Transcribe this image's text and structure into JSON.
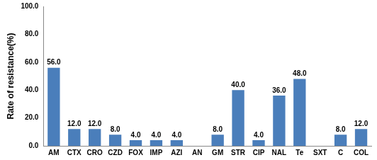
{
  "chart_data": {
    "type": "bar",
    "y_label": "Rate of resistance(%)",
    "categories": [
      "AM",
      "CTX",
      "CRO",
      "CZD",
      "FOX",
      "IMP",
      "AZI",
      "AN",
      "GM",
      "STR",
      "CIP",
      "NAL",
      "Te",
      "SXT",
      "C",
      "COL"
    ],
    "values": [
      56,
      12,
      12,
      8,
      4,
      4,
      4,
      0,
      8,
      40,
      4,
      36,
      48,
      0,
      8,
      12
    ],
    "value_labels": [
      "56.0",
      "12.0",
      "12.0",
      "8.0",
      "4.0",
      "4.0",
      "4.0",
      null,
      "8.0",
      "40.0",
      "4.0",
      "36.0",
      "48.0",
      null,
      "8.0",
      "12.0"
    ],
    "color": "#4a7ebb",
    "ylim": [
      0,
      100
    ],
    "yticks": [
      {
        "value": 0,
        "label": "0.0"
      },
      {
        "value": 20,
        "label": "20.0"
      },
      {
        "value": 40,
        "label": "40.0"
      },
      {
        "value": 60,
        "label": "60.0"
      },
      {
        "value": 80,
        "label": "80.0"
      },
      {
        "value": 100,
        "label": "100.0"
      }
    ],
    "grid": false,
    "data_labels": true,
    "tick_labels": true
  }
}
